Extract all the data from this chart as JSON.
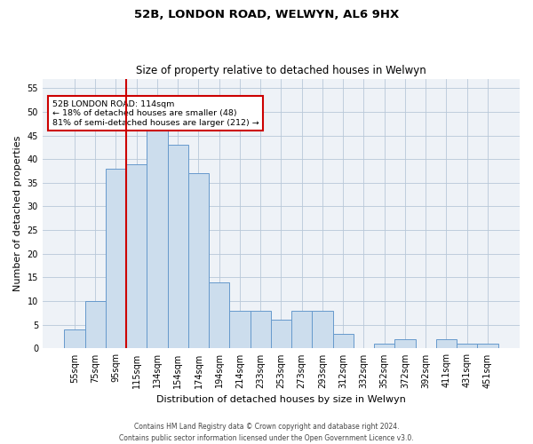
{
  "title1": "52B, LONDON ROAD, WELWYN, AL6 9HX",
  "title2": "Size of property relative to detached houses in Welwyn",
  "xlabel": "Distribution of detached houses by size in Welwyn",
  "ylabel": "Number of detached properties",
  "categories": [
    "55sqm",
    "75sqm",
    "95sqm",
    "115sqm",
    "134sqm",
    "154sqm",
    "174sqm",
    "194sqm",
    "214sqm",
    "233sqm",
    "253sqm",
    "273sqm",
    "293sqm",
    "312sqm",
    "332sqm",
    "352sqm",
    "372sqm",
    "392sqm",
    "411sqm",
    "431sqm",
    "451sqm"
  ],
  "values": [
    4,
    10,
    38,
    39,
    46,
    43,
    37,
    14,
    8,
    8,
    6,
    8,
    8,
    3,
    0,
    1,
    2,
    0,
    2,
    1,
    1
  ],
  "bar_color": "#ccdded",
  "bar_edge_color": "#6699cc",
  "grid_color": "#b8c8d8",
  "vline_color": "#cc0000",
  "annotation_line1": "52B LONDON ROAD: 114sqm",
  "annotation_line2": "← 18% of detached houses are smaller (48)",
  "annotation_line3": "81% of semi-detached houses are larger (212) →",
  "annotation_box_color": "#cc0000",
  "ylim": [
    0,
    57
  ],
  "yticks": [
    0,
    5,
    10,
    15,
    20,
    25,
    30,
    35,
    40,
    45,
    50,
    55
  ],
  "footer1": "Contains HM Land Registry data © Crown copyright and database right 2024.",
  "footer2": "Contains public sector information licensed under the Open Government Licence v3.0.",
  "bg_color": "#eef2f7",
  "title1_fontsize": 9.5,
  "title2_fontsize": 8.5,
  "ylabel_fontsize": 8,
  "xlabel_fontsize": 8,
  "tick_fontsize": 7,
  "footer_fontsize": 5.5
}
